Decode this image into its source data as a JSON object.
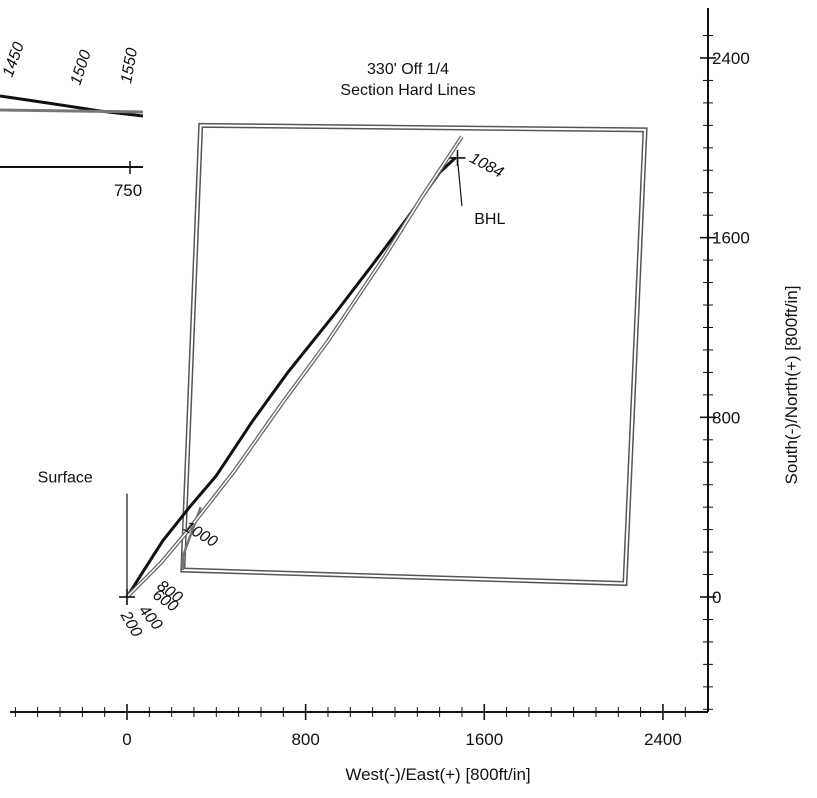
{
  "chart_data": {
    "type": "line",
    "title": "",
    "xlabel": "West(-)/East(+) [800ft/in]",
    "ylabel": "South(-)/North(+) [800ft/in]",
    "xlim": [
      -500,
      2500
    ],
    "ylim": [
      -500,
      2520
    ],
    "x_ticks": [
      0,
      800,
      1600,
      2400
    ],
    "y_ticks": [
      0,
      800,
      1600,
      2400
    ],
    "x_minor_step": 100,
    "y_minor_step": 100,
    "grid": false,
    "series": [
      {
        "role": "wellbore",
        "points": [
          [
            0,
            0
          ],
          [
            70,
            110
          ],
          [
            160,
            250
          ],
          [
            280,
            400
          ],
          [
            400,
            540
          ],
          [
            560,
            780
          ],
          [
            720,
            1000
          ],
          [
            930,
            1260
          ],
          [
            1100,
            1480
          ],
          [
            1250,
            1680
          ],
          [
            1400,
            1890
          ],
          [
            1470,
            1955
          ]
        ]
      },
      {
        "role": "plan",
        "points": [
          [
            0,
            0
          ],
          [
            60,
            60
          ],
          [
            150,
            150
          ],
          [
            260,
            280
          ],
          [
            480,
            560
          ],
          [
            700,
            870
          ],
          [
            900,
            1140
          ],
          [
            1150,
            1510
          ],
          [
            1320,
            1780
          ],
          [
            1500,
            2050
          ]
        ]
      }
    ],
    "hard_lines": {
      "label_lines": [
        "330' Off 1/4",
        "Section Hard Lines"
      ],
      "corners": [
        [
          330,
          2100
        ],
        [
          2320,
          2080
        ],
        [
          2230,
          60
        ],
        [
          250,
          120
        ]
      ],
      "inner_notch": [
        [
          250,
          120
        ],
        [
          250,
          180
        ],
        [
          330,
          400
        ]
      ]
    },
    "depth_labels": [
      {
        "text": "1000",
        "x": 250,
        "y": 300,
        "rotate": 30
      },
      {
        "text": "800",
        "x": 130,
        "y": 40,
        "rotate": 35
      },
      {
        "text": "600",
        "x": 110,
        "y": 0,
        "rotate": 35
      },
      {
        "text": "400",
        "x": 50,
        "y": -60,
        "rotate": 50
      },
      {
        "text": "200",
        "x": -30,
        "y": -80,
        "rotate": 60
      },
      {
        "text": "1084",
        "x": 1530,
        "y": 1940,
        "rotate": 28
      }
    ],
    "annotations": [
      {
        "text": "Surface",
        "x": -400,
        "y": 510,
        "pointer": [
          [
            0,
            460
          ],
          [
            0,
            0
          ]
        ]
      },
      {
        "text": "BHL",
        "x": 1555,
        "y": 1660,
        "pointer": [
          [
            1500,
            1740
          ],
          [
            1480,
            1950
          ]
        ]
      }
    ],
    "markers": [
      {
        "name": "surface-marker",
        "x": 0,
        "y": 0
      },
      {
        "name": "bhl-marker",
        "x": 1480,
        "y": 1955
      }
    ],
    "inset": {
      "x_tick_labels": [
        "750"
      ],
      "depth_labels": [
        "1450",
        "1500",
        "1550"
      ]
    }
  }
}
